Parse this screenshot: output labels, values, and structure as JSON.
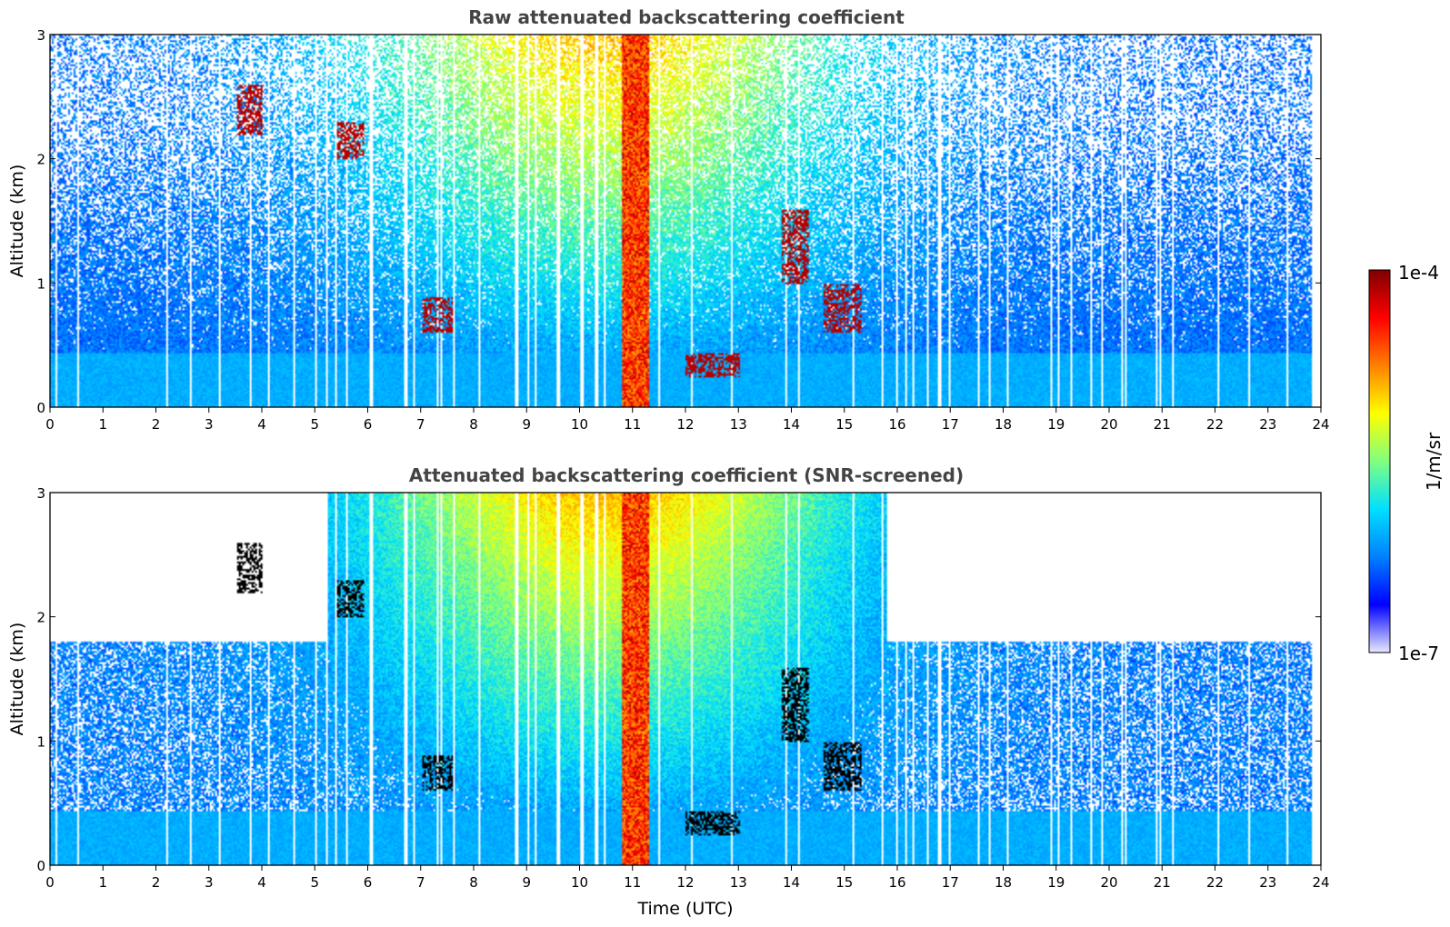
{
  "chart_data": [
    {
      "type": "heatmap",
      "title": "Raw attenuated backscattering coefficient",
      "xlabel": "",
      "ylabel": "Altitude (km)",
      "xlim": [
        0,
        24
      ],
      "ylim": [
        0,
        3
      ],
      "x_ticks": [
        "0",
        "1",
        "2",
        "3",
        "4",
        "5",
        "6",
        "7",
        "8",
        "9",
        "10",
        "11",
        "12",
        "13",
        "14",
        "15",
        "16",
        "17",
        "18",
        "19",
        "20",
        "21",
        "22",
        "23",
        "24"
      ],
      "y_ticks": [
        "0",
        "1",
        "2",
        "3"
      ],
      "data_end_hour": 23.8,
      "features": [
        {
          "kind": "boundary_layer",
          "top_km": 0.45
        },
        {
          "kind": "cloud",
          "x": [
            3.5,
            4.0
          ],
          "y": [
            2.2,
            2.6
          ]
        },
        {
          "kind": "cloud",
          "x": [
            5.4,
            5.9
          ],
          "y": [
            2.0,
            2.3
          ]
        },
        {
          "kind": "cloud",
          "x": [
            7.0,
            7.6
          ],
          "y": [
            0.6,
            0.9
          ]
        },
        {
          "kind": "precipitation",
          "x": [
            10.8,
            11.3
          ],
          "y": [
            0.0,
            3.0
          ]
        },
        {
          "kind": "cloud",
          "x": [
            12.0,
            13.0
          ],
          "y": [
            0.25,
            0.45
          ]
        },
        {
          "kind": "cloud",
          "x": [
            13.8,
            14.3
          ],
          "y": [
            1.0,
            1.6
          ]
        },
        {
          "kind": "cloud",
          "x": [
            14.6,
            15.3
          ],
          "y": [
            0.6,
            1.0
          ]
        }
      ]
    },
    {
      "type": "heatmap",
      "title": "Attenuated backscattering coefficient (SNR-screened)",
      "xlabel": "Time (UTC)",
      "ylabel": "Altitude (km)",
      "xlim": [
        0,
        24
      ],
      "ylim": [
        0,
        3
      ],
      "x_ticks": [
        "0",
        "1",
        "2",
        "3",
        "4",
        "5",
        "6",
        "7",
        "8",
        "9",
        "10",
        "11",
        "12",
        "13",
        "14",
        "15",
        "16",
        "17",
        "18",
        "19",
        "20",
        "21",
        "22",
        "23",
        "24"
      ],
      "y_ticks": [
        "0",
        "1",
        "2",
        "3"
      ],
      "data_end_hour": 23.8
    }
  ],
  "colorbar": {
    "label": "1/m/sr",
    "max_label": "1e-4",
    "min_label": "1e-7",
    "colormap": "jet",
    "colors": [
      "#e8e8ff",
      "#0000ff",
      "#0080ff",
      "#00e0ff",
      "#80ff80",
      "#ffff00",
      "#ff8000",
      "#ff0000",
      "#800000"
    ]
  }
}
